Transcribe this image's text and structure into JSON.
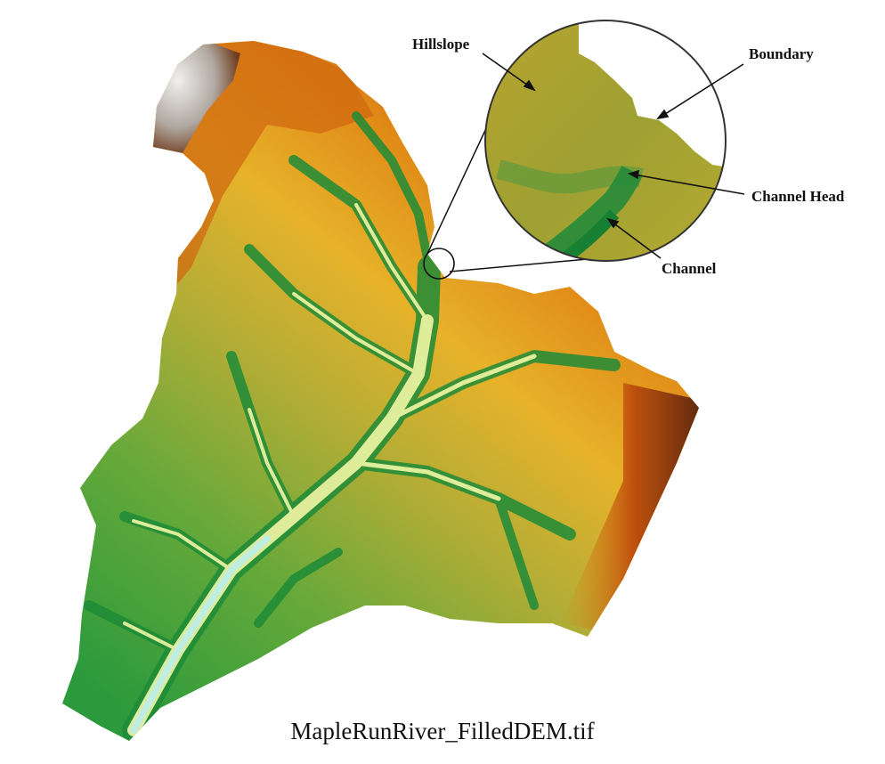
{
  "caption": "MapleRunRiver_FilledDEM.tif",
  "callouts": {
    "hillslope": "Hillslope",
    "boundary": "Boundary",
    "channel_head": "Channel Head",
    "channel": "Channel"
  },
  "colors": {
    "low_elevation": "#c6ecd6",
    "channel_green": "#1f8a3a",
    "mid_green": "#74a83a",
    "olive": "#a8a838",
    "yellow": "#e2b830",
    "orange": "#e89a18",
    "high_red": "#c04a0c",
    "dark_brown": "#6e2c10",
    "peak_gray": "#dcdcdc"
  }
}
